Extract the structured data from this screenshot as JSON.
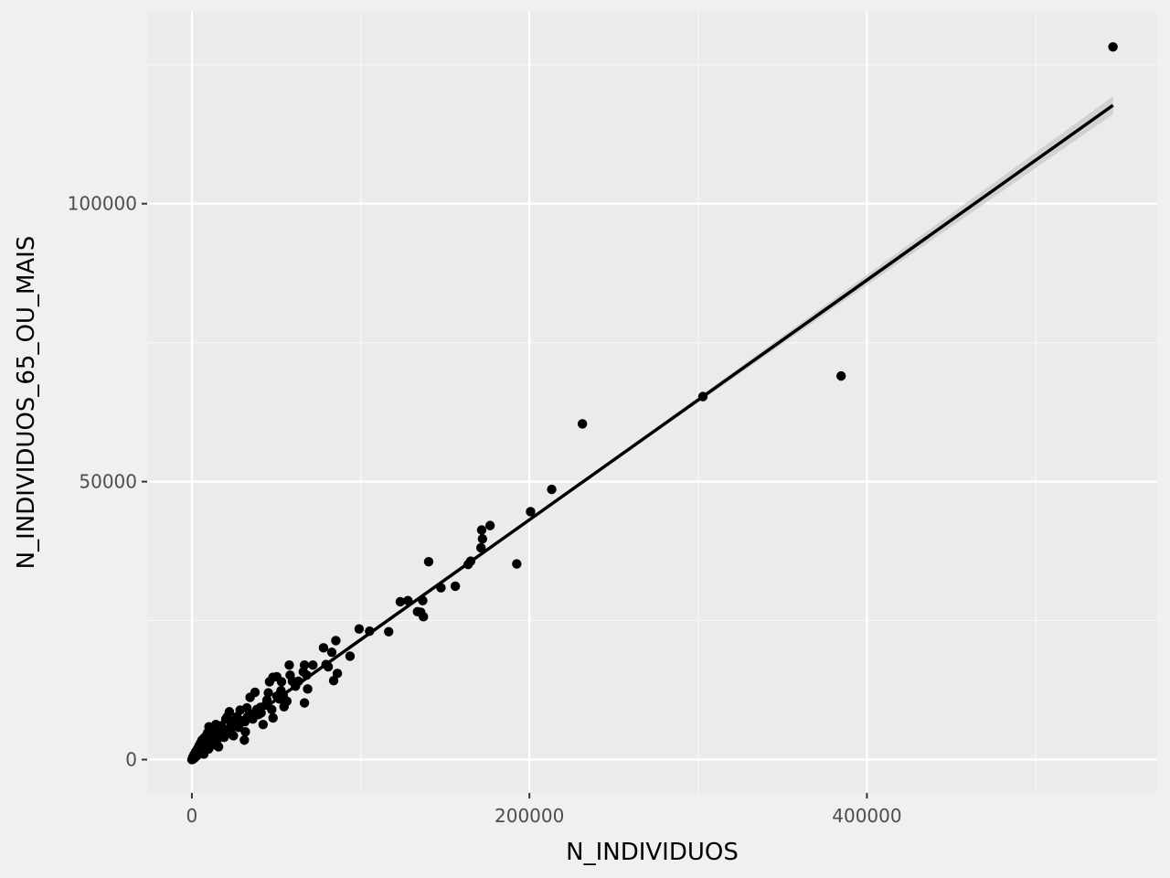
{
  "chart_data": {
    "type": "scatter",
    "title": "",
    "xlabel": "N_INDIVIDUOS",
    "ylabel": "N_INDIVIDUOS_65_OU_MAIS",
    "xlim": [
      -26500,
      572000
    ],
    "ylim": [
      -6000,
      134500
    ],
    "x_ticks": [
      0,
      200000,
      400000
    ],
    "y_ticks": [
      0,
      50000,
      100000
    ],
    "x_tick_labels": [
      "0",
      "200000",
      "400000"
    ],
    "y_tick_labels": [
      "0",
      "50000",
      "100000"
    ],
    "x_minor_ticks": [
      100000,
      300000,
      500000
    ],
    "y_minor_ticks": [
      25000,
      75000,
      125000
    ],
    "grid": true,
    "legend": "none",
    "colors": {
      "panel_background": "#ebebeb",
      "page_background": "#f0f0f0",
      "grid_major": "#ffffff",
      "grid_minor": "#f7f7f7",
      "points": "#000000",
      "fit_line": "#000000",
      "confidence_band": "#bfbfbf"
    },
    "fit": {
      "method": "lm",
      "line": [
        [
          0,
          0
        ],
        [
          545800,
          117700
        ]
      ],
      "band_halfwidth": [
        [
          0,
          200
        ],
        [
          250000,
          250
        ],
        [
          545800,
          1600
        ]
      ]
    },
    "points": [
      [
        545800,
        128200
      ],
      [
        384700,
        69000
      ],
      [
        302800,
        65300
      ],
      [
        231400,
        60400
      ],
      [
        213200,
        48600
      ],
      [
        200700,
        44600
      ],
      [
        192500,
        35200
      ],
      [
        176700,
        42100
      ],
      [
        171700,
        41300
      ],
      [
        172200,
        39700
      ],
      [
        171300,
        38100
      ],
      [
        165200,
        35700
      ],
      [
        163700,
        35100
      ],
      [
        140300,
        35600
      ],
      [
        156100,
        31200
      ],
      [
        147600,
        30900
      ],
      [
        136800,
        28600
      ],
      [
        128000,
        28600
      ],
      [
        123500,
        28400
      ],
      [
        133700,
        26600
      ],
      [
        135600,
        26500
      ],
      [
        137200,
        25700
      ],
      [
        99100,
        23500
      ],
      [
        105300,
        23100
      ],
      [
        116600,
        23000
      ],
      [
        85300,
        21400
      ],
      [
        78000,
        20100
      ],
      [
        82900,
        19300
      ],
      [
        93700,
        18600
      ],
      [
        66700,
        17000
      ],
      [
        71700,
        17000
      ],
      [
        57700,
        17000
      ],
      [
        79500,
        17100
      ],
      [
        80800,
        16700
      ],
      [
        66000,
        15800
      ],
      [
        68000,
        15200
      ],
      [
        58200,
        15200
      ],
      [
        86200,
        15500
      ],
      [
        84000,
        14200
      ],
      [
        59600,
        14100
      ],
      [
        63100,
        14100
      ],
      [
        50300,
        14900
      ],
      [
        46000,
        14000
      ],
      [
        53100,
        14000
      ],
      [
        48000,
        14800
      ],
      [
        68600,
        12700
      ],
      [
        37400,
        12100
      ],
      [
        45300,
        12000
      ],
      [
        52800,
        12400
      ],
      [
        54100,
        11600
      ],
      [
        34500,
        11200
      ],
      [
        50400,
        11400
      ],
      [
        44500,
        10700
      ],
      [
        56300,
        10500
      ],
      [
        66700,
        10200
      ],
      [
        54600,
        9500
      ],
      [
        40600,
        9400
      ],
      [
        32600,
        9300
      ],
      [
        38500,
        9000
      ],
      [
        28600,
        8900
      ],
      [
        47300,
        9000
      ],
      [
        22200,
        8600
      ],
      [
        41000,
        8400
      ],
      [
        35300,
        8200
      ],
      [
        21000,
        7700
      ],
      [
        26700,
        7700
      ],
      [
        33000,
        7700
      ],
      [
        39400,
        8100
      ],
      [
        48100,
        7500
      ],
      [
        20100,
        7300
      ],
      [
        25300,
        7000
      ],
      [
        31400,
        6800
      ],
      [
        14200,
        6300
      ],
      [
        17500,
        6100
      ],
      [
        23300,
        6300
      ],
      [
        42200,
        6300
      ],
      [
        10100,
        5900
      ],
      [
        16800,
        5600
      ],
      [
        27700,
        5800
      ],
      [
        19200,
        5400
      ],
      [
        12400,
        5200
      ],
      [
        22300,
        5000
      ],
      [
        31700,
        5000
      ],
      [
        9300,
        4800
      ],
      [
        16500,
        4700
      ],
      [
        8700,
        4400
      ],
      [
        13000,
        4400
      ],
      [
        24600,
        4300
      ],
      [
        19100,
        4000
      ],
      [
        7300,
        3900
      ],
      [
        11100,
        3800
      ],
      [
        15300,
        3700
      ],
      [
        31100,
        3500
      ],
      [
        6000,
        3500
      ],
      [
        10500,
        3200
      ],
      [
        5200,
        3000
      ],
      [
        8300,
        2800
      ],
      [
        12100,
        2600
      ],
      [
        15800,
        2300
      ],
      [
        4300,
        2500
      ],
      [
        7300,
        2100
      ],
      [
        9900,
        1900
      ],
      [
        3300,
        1900
      ],
      [
        5900,
        1700
      ],
      [
        2200,
        1400
      ],
      [
        4500,
        1200
      ],
      [
        7100,
        1000
      ],
      [
        1300,
        900
      ],
      [
        3000,
        700
      ],
      [
        500,
        400
      ],
      [
        1600,
        300
      ],
      [
        0,
        0
      ],
      [
        800,
        100
      ],
      [
        2100,
        600
      ],
      [
        3700,
        1500
      ],
      [
        6500,
        2500
      ],
      [
        13400,
        3400
      ],
      [
        20500,
        4600
      ],
      [
        26300,
        6000
      ],
      [
        29700,
        7000
      ],
      [
        36100,
        7300
      ],
      [
        43700,
        9800
      ],
      [
        51900,
        10900
      ],
      [
        61400,
        13200
      ]
    ]
  }
}
